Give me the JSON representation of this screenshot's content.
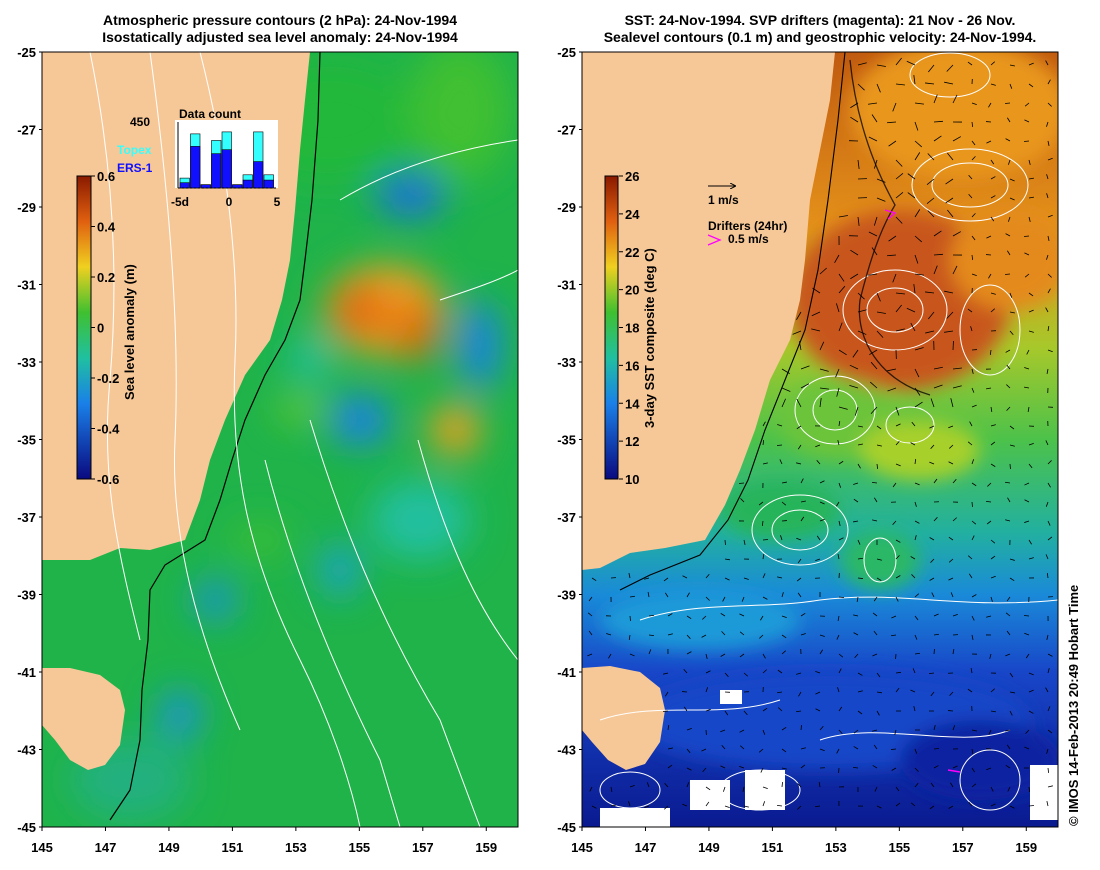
{
  "left_panel": {
    "title_line1": "Atmospheric pressure contours (2 hPa): 24-Nov-1994",
    "title_line2": "Isostatically adjusted sea level anomaly: 24-Nov-1994",
    "colorbar_label": "Sea level anomaly (m)",
    "colorbar_ticks": [
      "0.6",
      "0.4",
      "0.2",
      "0",
      "-0.2",
      "-0.4",
      "-0.6"
    ],
    "inset": {
      "title": "Data count",
      "y_max_label": "450",
      "legend_topex": "Topex",
      "legend_ers": "ERS-1",
      "x_ticks": [
        "-5d",
        "0",
        "5"
      ],
      "colors": {
        "topex": "#33ffff",
        "ers": "#1010ff"
      }
    }
  },
  "right_panel": {
    "title_line1": "SST: 24-Nov-1994. SVP drifters (magenta): 21 Nov - 26 Nov.",
    "title_line2": "Sealevel contours (0.1 m) and geostrophic velocity: 24-Nov-1994.",
    "colorbar_label": "3-day SST composite (deg C)",
    "colorbar_ticks": [
      "26",
      "24",
      "22",
      "20",
      "18",
      "16",
      "14",
      "12",
      "10"
    ],
    "legend_velocity": "1 m/s",
    "legend_drifters_title": "Drifters (24hr)",
    "legend_drifters_speed": "0.5 m/s",
    "drifter_color": "#ff00ff"
  },
  "axes": {
    "lat_ticks": [
      "-25",
      "-27",
      "-29",
      "-31",
      "-33",
      "-35",
      "-37",
      "-39",
      "-41",
      "-43",
      "-45"
    ],
    "lon_ticks": [
      "145",
      "147",
      "149",
      "151",
      "153",
      "155",
      "157",
      "159"
    ]
  },
  "credit": "© IMOS 14-Feb-2013 20:49 Hobart Time",
  "colors": {
    "land": "#f7c897",
    "ocean_left": "#1fb34a",
    "ocean_right_cold": "#0a2aa8"
  }
}
